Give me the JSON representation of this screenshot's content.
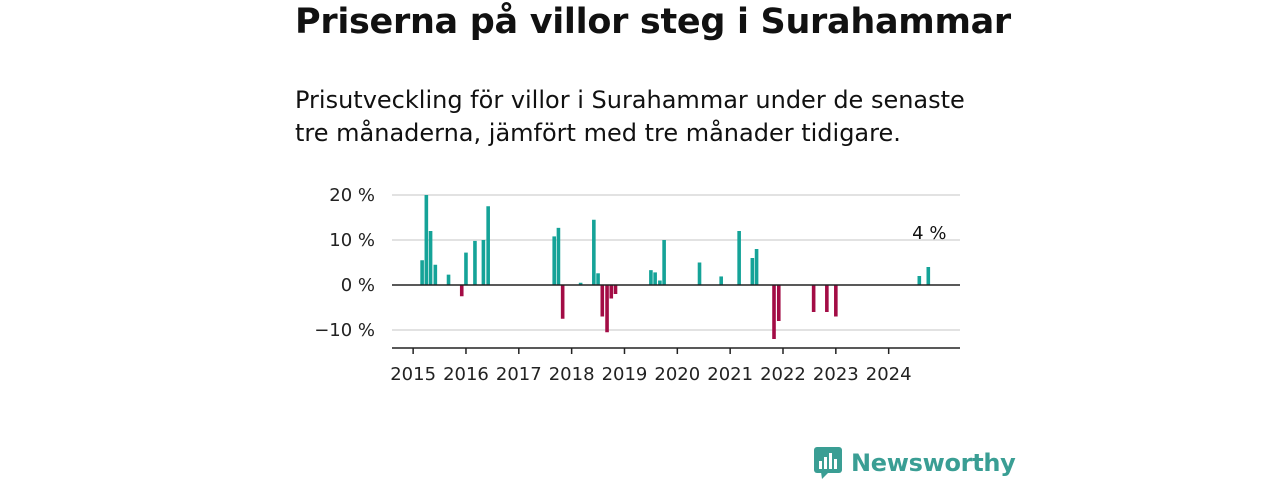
{
  "header": {
    "title": "Priserna på villor steg i Surahammar",
    "subtitle": "Prisutveckling för villor i Surahammar under de senaste tre månaderna, jämfört med tre månader tidigare."
  },
  "colors": {
    "positive": "#15a398",
    "negative": "#a30c45",
    "grid": "#d9d9d9",
    "axis": "#222222",
    "brand": "#3a9e94"
  },
  "brand": {
    "name": "Newsworthy",
    "icon": "bar-chart-speech-bubble-icon"
  },
  "chart_data": {
    "type": "bar",
    "title": "Priserna på villor steg i Surahammar",
    "ylabel": "",
    "xlabel": "",
    "ylim": [
      -14,
      22
    ],
    "xlim": [
      2014.6,
      2025.35
    ],
    "yticks": [
      {
        "value": 20,
        "label": "20 %"
      },
      {
        "value": 10,
        "label": "10 %"
      },
      {
        "value": 0,
        "label": "0 %"
      },
      {
        "value": -10,
        "label": "−10 %"
      }
    ],
    "xticks": [
      {
        "value": 2015,
        "label": "2015"
      },
      {
        "value": 2016,
        "label": "2016"
      },
      {
        "value": 2017,
        "label": "2017"
      },
      {
        "value": 2018,
        "label": "2018"
      },
      {
        "value": 2019,
        "label": "2019"
      },
      {
        "value": 2020,
        "label": "2020"
      },
      {
        "value": 2021,
        "label": "2021"
      },
      {
        "value": 2022,
        "label": "2022"
      },
      {
        "value": 2023,
        "label": "2023"
      },
      {
        "value": 2024,
        "label": "2024"
      }
    ],
    "annotation": {
      "label": "4 %",
      "x": 2024.75,
      "y": 4
    },
    "series": [
      {
        "name": "Prisutveckling",
        "points": [
          {
            "x": 2015.17,
            "y": 5.5
          },
          {
            "x": 2015.25,
            "y": 20.0
          },
          {
            "x": 2015.33,
            "y": 12.0
          },
          {
            "x": 2015.42,
            "y": 4.5
          },
          {
            "x": 2015.67,
            "y": 2.3
          },
          {
            "x": 2015.92,
            "y": -2.5
          },
          {
            "x": 2016.0,
            "y": 7.2
          },
          {
            "x": 2016.17,
            "y": 9.8
          },
          {
            "x": 2016.33,
            "y": 10.0
          },
          {
            "x": 2016.42,
            "y": 17.5
          },
          {
            "x": 2017.67,
            "y": 10.8
          },
          {
            "x": 2017.75,
            "y": 12.7
          },
          {
            "x": 2017.83,
            "y": -7.5
          },
          {
            "x": 2018.17,
            "y": 0.5
          },
          {
            "x": 2018.42,
            "y": 14.5
          },
          {
            "x": 2018.5,
            "y": 2.6
          },
          {
            "x": 2018.58,
            "y": -7.0
          },
          {
            "x": 2018.67,
            "y": -10.5
          },
          {
            "x": 2018.75,
            "y": -3.0
          },
          {
            "x": 2018.83,
            "y": -2.0
          },
          {
            "x": 2019.5,
            "y": 3.3
          },
          {
            "x": 2019.58,
            "y": 2.8
          },
          {
            "x": 2019.67,
            "y": 1.0
          },
          {
            "x": 2019.75,
            "y": 10.0
          },
          {
            "x": 2020.42,
            "y": 5.0
          },
          {
            "x": 2020.83,
            "y": 1.9
          },
          {
            "x": 2021.17,
            "y": 12.0
          },
          {
            "x": 2021.42,
            "y": 6.0
          },
          {
            "x": 2021.5,
            "y": 8.0
          },
          {
            "x": 2021.83,
            "y": -12.0
          },
          {
            "x": 2021.92,
            "y": -8.0
          },
          {
            "x": 2022.58,
            "y": -6.0
          },
          {
            "x": 2022.83,
            "y": -6.0
          },
          {
            "x": 2023.0,
            "y": -7.0
          },
          {
            "x": 2024.58,
            "y": 2.0
          },
          {
            "x": 2024.75,
            "y": 4.0
          }
        ]
      }
    ]
  }
}
